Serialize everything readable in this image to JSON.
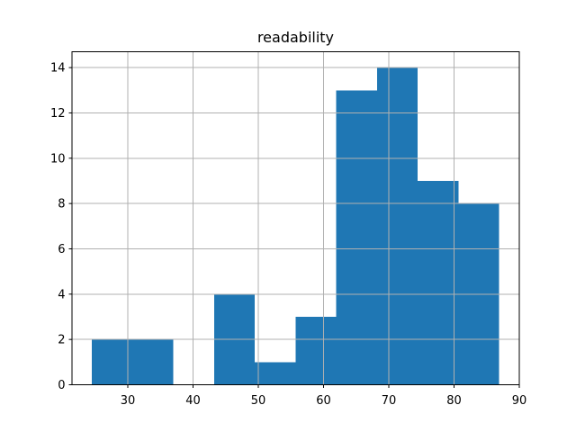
{
  "figure": {
    "background": "#ffffff"
  },
  "chart_data": {
    "type": "bar",
    "subtype": "histogram",
    "title": "readability",
    "xlabel": "",
    "ylabel": "",
    "bin_edges": [
      24.49,
      30.73,
      36.97,
      43.22,
      49.46,
      55.7,
      61.94,
      68.18,
      74.43,
      80.67,
      86.91
    ],
    "counts": [
      2,
      2,
      0,
      4,
      1,
      3,
      13,
      14,
      9,
      8
    ],
    "xticks": [
      30,
      40,
      50,
      60,
      70,
      80,
      90
    ],
    "yticks": [
      0,
      2,
      4,
      6,
      8,
      10,
      12,
      14
    ],
    "xlim": [
      21.45,
      90.0
    ],
    "ylim": [
      0,
      14.7
    ],
    "grid": true,
    "legend": "none",
    "bar_color": "#1f77b4",
    "grid_color": "#b0b0b0",
    "spine_color": "#000000",
    "text_color": "#000000",
    "plot_background": "#ffffff"
  }
}
